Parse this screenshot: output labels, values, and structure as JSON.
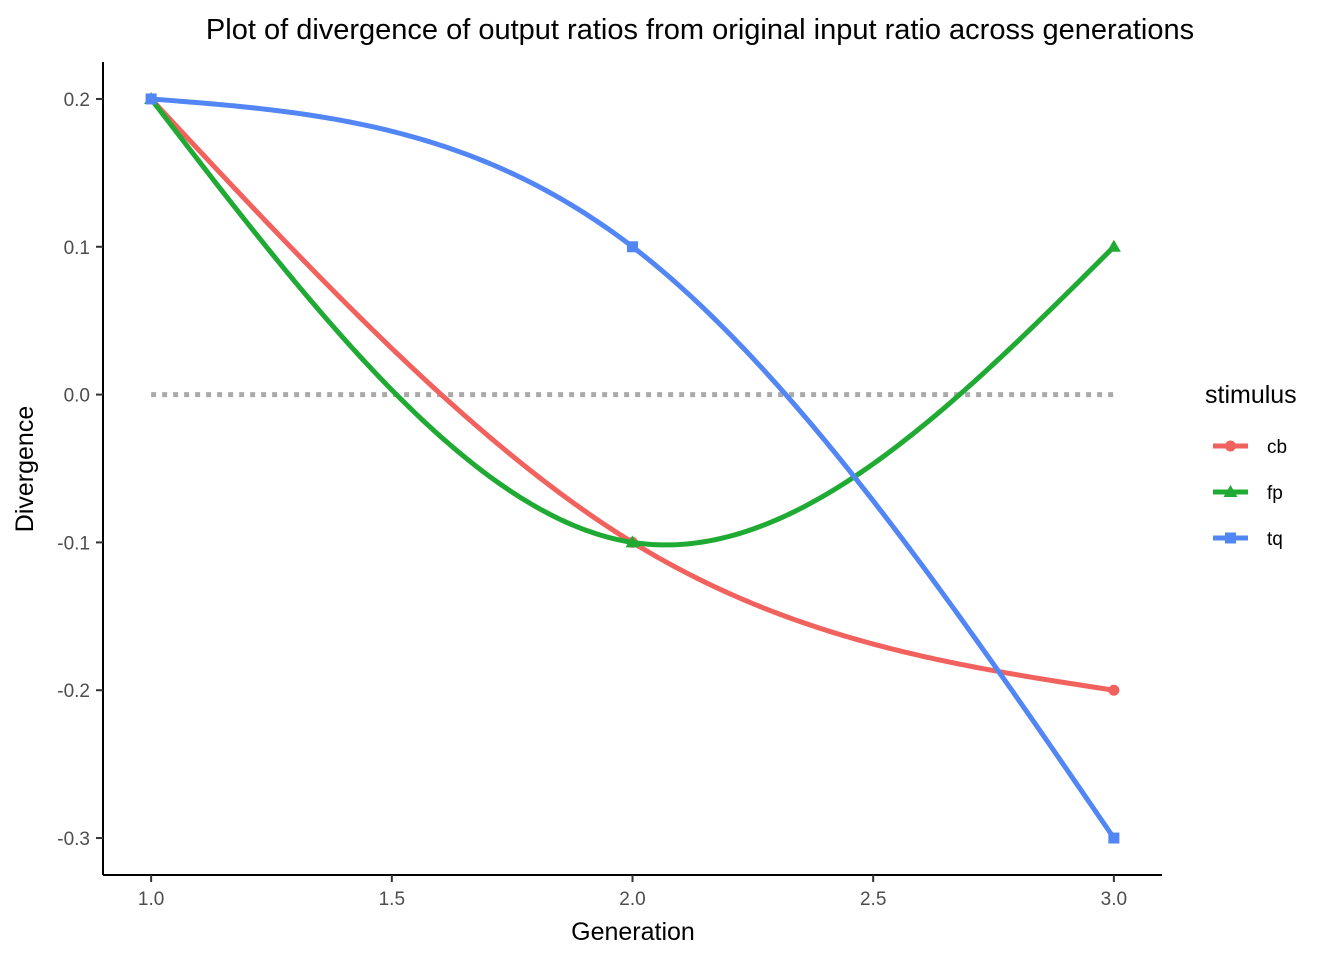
{
  "chart_data": {
    "type": "line",
    "title": "Plot of divergence of output ratios from original input ratio across generations",
    "xlabel": "Generation",
    "ylabel": "Divergence",
    "xlim": [
      0.9,
      3.1
    ],
    "ylim": [
      -0.325,
      0.225
    ],
    "x_ticks": [
      1.0,
      1.5,
      2.0,
      2.5,
      3.0
    ],
    "x_tick_labels": [
      "1.0",
      "1.5",
      "2.0",
      "2.5",
      "3.0"
    ],
    "y_ticks": [
      0.2,
      0.1,
      0.0,
      -0.1,
      -0.2,
      -0.3
    ],
    "y_tick_labels": [
      "0.2",
      "0.1",
      "0.0",
      "-0.1",
      "-0.2",
      "-0.3"
    ],
    "grid": false,
    "smooth": true,
    "reference_line": {
      "y": 0,
      "x_range": [
        1.0,
        3.0
      ],
      "style": "dotted",
      "color": "#aaaaaa"
    },
    "legend": {
      "title": "stimulus",
      "position": "right"
    },
    "x": [
      1,
      2,
      3
    ],
    "series": [
      {
        "name": "cb",
        "values": [
          0.2,
          -0.1,
          -0.2
        ],
        "color": "#F1625E",
        "marker": "circle"
      },
      {
        "name": "fp",
        "values": [
          0.2,
          -0.1,
          0.1
        ],
        "color": "#1FAA33",
        "marker": "triangle"
      },
      {
        "name": "tq",
        "values": [
          0.2,
          0.1,
          -0.3
        ],
        "color": "#5386F5",
        "marker": "square"
      }
    ]
  }
}
